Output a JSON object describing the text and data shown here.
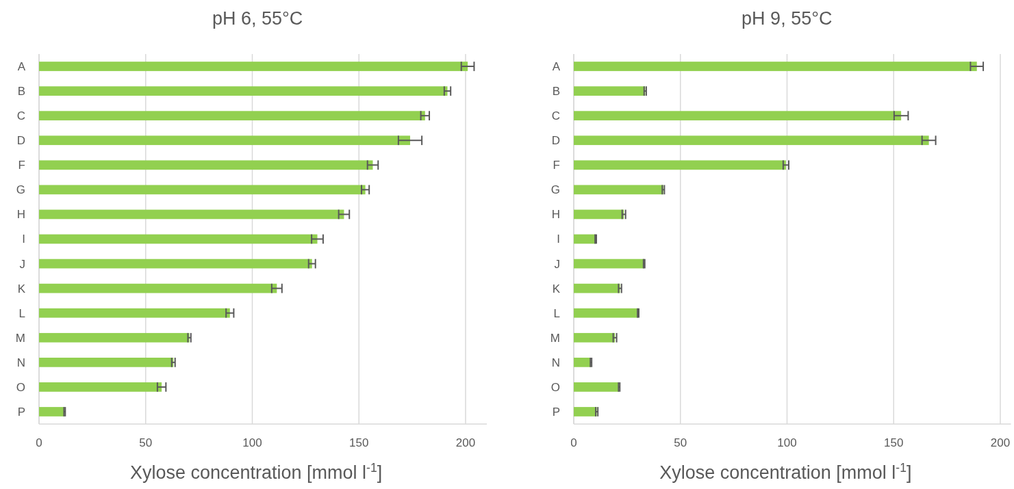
{
  "chart_data": [
    {
      "type": "bar",
      "orientation": "horizontal",
      "title": "pH 6, 55°C",
      "xlabel": "Xylose concentration [mmol l$^{-1}$]",
      "categories": [
        "A",
        "B",
        "C",
        "D",
        "F",
        "G",
        "H",
        "I",
        "J",
        "K",
        "L",
        "M",
        "N",
        "O",
        "P"
      ],
      "color": "#92d050",
      "values": [
        201,
        191.5,
        181,
        174,
        156.5,
        153,
        143,
        130.5,
        128,
        111.5,
        89.5,
        70.5,
        63,
        57.5,
        12
      ],
      "errors": [
        3,
        1.5,
        2,
        5.5,
        2.5,
        1.8,
        2.5,
        2.7,
        1.6,
        2.4,
        1.8,
        0.7,
        0.8,
        2,
        0.3
      ],
      "xlim": [
        0,
        210
      ],
      "xticks": [
        0,
        50,
        100,
        150,
        200
      ],
      "grid": "x"
    },
    {
      "type": "bar",
      "orientation": "horizontal",
      "title": "pH 9, 55°C",
      "xlabel": "Xylose concentration [mmol l$^{-1}$]",
      "categories": [
        "A",
        "B",
        "C",
        "D",
        "F",
        "G",
        "H",
        "I",
        "J",
        "K",
        "L",
        "M",
        "N",
        "O",
        "P"
      ],
      "color": "#92d050",
      "values": [
        189,
        33.5,
        153.5,
        166.5,
        99.5,
        42,
        23.5,
        10.3,
        33,
        21.7,
        30.2,
        19.3,
        8.1,
        21.3,
        10.8
      ],
      "errors": [
        3,
        0.5,
        3.3,
        3.2,
        1.3,
        0.5,
        0.8,
        0.3,
        0.3,
        0.7,
        0.3,
        0.8,
        0.3,
        0.3,
        0.5
      ],
      "xlim": [
        0,
        205
      ],
      "xticks": [
        0,
        50,
        100,
        150,
        200
      ],
      "grid": "x"
    }
  ]
}
